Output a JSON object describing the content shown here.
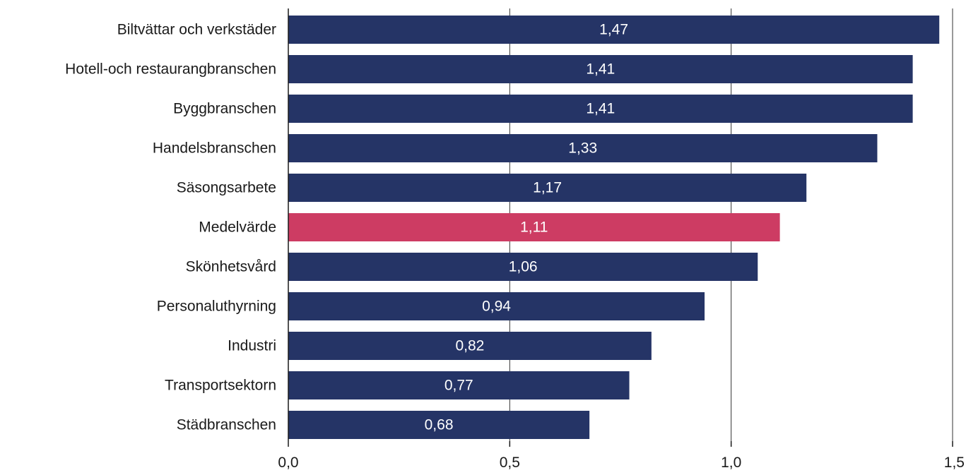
{
  "chart_data": {
    "type": "bar",
    "orientation": "horizontal",
    "categories": [
      "Biltvättar och verkstäder",
      "Hotell-och restaurangbranschen",
      "Byggbranschen",
      "Handelsbranschen",
      "Säsongsarbete",
      "Medelvärde",
      "Skönhetsvård",
      "Personaluthyrning",
      "Industri",
      "Transportsektorn",
      "Städbranschen"
    ],
    "values": [
      1.47,
      1.41,
      1.41,
      1.33,
      1.17,
      1.11,
      1.06,
      0.94,
      0.82,
      0.77,
      0.68
    ],
    "value_labels": [
      "1,47",
      "1,41",
      "1,41",
      "1,33",
      "1,17",
      "1,11",
      "1,06",
      "0,94",
      "0,82",
      "0,77",
      "0,68"
    ],
    "highlight_category": "Medelvärde",
    "xlim": [
      0,
      1.5
    ],
    "ticks": [
      0,
      0.5,
      1.0,
      1.5
    ],
    "tick_labels": [
      "0,0",
      "0,5",
      "1,0",
      "1,5"
    ],
    "grid": "vertical",
    "colors": {
      "bar": "#253466",
      "highlight": "#cd3c63",
      "grid": "#333333",
      "text": "#1a1a1a",
      "value_text": "#ffffff"
    }
  }
}
